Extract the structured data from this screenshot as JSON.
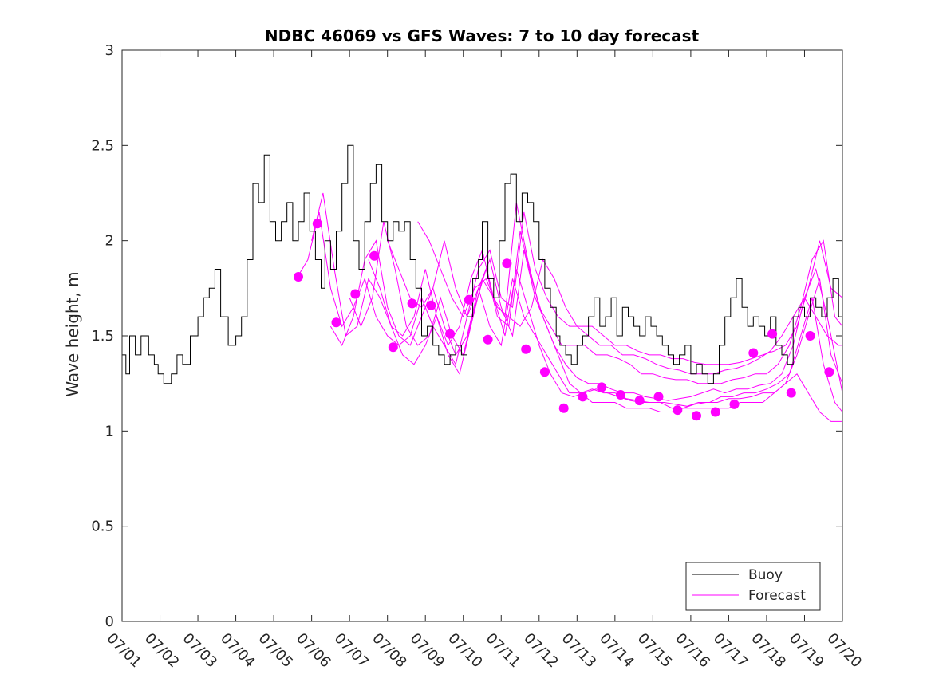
{
  "chart_data": {
    "type": "line",
    "title": "NDBC 46069 vs GFS Waves: 7 to 10 day forecast",
    "xlabel": "",
    "ylabel": "Wave height, m",
    "xlim": [
      0,
      19
    ],
    "ylim": [
      0,
      3
    ],
    "yticks": [
      0,
      0.5,
      1,
      1.5,
      2,
      2.5,
      3
    ],
    "xtick_labels": [
      "07/01",
      "07/02",
      "07/03",
      "07/04",
      "07/05",
      "07/06",
      "07/07",
      "07/08",
      "07/09",
      "07/10",
      "07/11",
      "07/12",
      "07/13",
      "07/14",
      "07/15",
      "07/16",
      "07/17",
      "07/18",
      "07/19",
      "07/20"
    ],
    "grid": false,
    "legend": {
      "position": "bottom-right",
      "entries": [
        "Buoy",
        "Forecast"
      ]
    },
    "colors": {
      "buoy": "#000000",
      "forecast": "#ff00ff"
    },
    "buoy": {
      "name": "Buoy",
      "x": [
        0.0,
        0.1,
        0.2,
        0.35,
        0.5,
        0.7,
        0.85,
        0.95,
        1.1,
        1.3,
        1.45,
        1.6,
        1.8,
        2.0,
        2.15,
        2.3,
        2.45,
        2.6,
        2.8,
        3.0,
        3.15,
        3.3,
        3.45,
        3.6,
        3.75,
        3.9,
        4.05,
        4.2,
        4.35,
        4.5,
        4.65,
        4.8,
        4.95,
        5.1,
        5.25,
        5.35,
        5.5,
        5.65,
        5.8,
        5.95,
        6.1,
        6.25,
        6.4,
        6.55,
        6.7,
        6.85,
        7.0,
        7.15,
        7.3,
        7.45,
        7.6,
        7.75,
        7.9,
        8.05,
        8.2,
        8.35,
        8.5,
        8.65,
        8.8,
        8.95,
        9.1,
        9.25,
        9.4,
        9.5,
        9.65,
        9.8,
        9.95,
        10.1,
        10.25,
        10.4,
        10.55,
        10.7,
        10.85,
        11.0,
        11.15,
        11.3,
        11.45,
        11.55,
        11.7,
        11.85,
        12.0,
        12.15,
        12.3,
        12.45,
        12.6,
        12.75,
        12.9,
        13.05,
        13.2,
        13.35,
        13.5,
        13.65,
        13.8,
        13.95,
        14.1,
        14.25,
        14.4,
        14.55,
        14.7,
        14.85,
        15.0,
        15.15,
        15.3,
        15.45,
        15.6,
        15.75,
        15.9,
        16.05,
        16.2,
        16.35,
        16.5,
        16.65,
        16.8,
        16.95,
        17.1,
        17.25,
        17.4,
        17.55,
        17.7,
        17.85,
        18.0,
        18.15,
        18.3,
        18.45,
        18.6,
        18.75,
        18.9,
        19.0
      ],
      "values": [
        1.4,
        1.3,
        1.5,
        1.4,
        1.5,
        1.4,
        1.35,
        1.3,
        1.25,
        1.3,
        1.4,
        1.35,
        1.5,
        1.6,
        1.7,
        1.75,
        1.85,
        1.6,
        1.45,
        1.5,
        1.6,
        1.9,
        2.3,
        2.2,
        2.45,
        2.1,
        2.0,
        2.1,
        2.2,
        2.0,
        2.1,
        2.25,
        2.05,
        1.9,
        1.75,
        2.0,
        1.85,
        2.05,
        2.3,
        2.5,
        2.0,
        1.85,
        2.1,
        2.3,
        2.4,
        2.1,
        2.0,
        2.1,
        2.05,
        2.1,
        1.9,
        1.75,
        1.5,
        1.55,
        1.45,
        1.4,
        1.35,
        1.4,
        1.45,
        1.4,
        1.6,
        1.8,
        1.9,
        2.1,
        1.8,
        1.7,
        2.0,
        2.3,
        2.35,
        2.1,
        2.25,
        2.2,
        2.1,
        1.9,
        1.75,
        1.65,
        1.5,
        1.45,
        1.4,
        1.35,
        1.45,
        1.5,
        1.6,
        1.7,
        1.55,
        1.6,
        1.7,
        1.5,
        1.65,
        1.6,
        1.55,
        1.5,
        1.6,
        1.55,
        1.5,
        1.45,
        1.4,
        1.35,
        1.4,
        1.45,
        1.3,
        1.35,
        1.3,
        1.25,
        1.3,
        1.45,
        1.6,
        1.7,
        1.8,
        1.65,
        1.55,
        1.6,
        1.55,
        1.5,
        1.6,
        1.45,
        1.4,
        1.35,
        1.6,
        1.65,
        1.6,
        1.7,
        1.65,
        1.6,
        1.7,
        1.8,
        1.6,
        1.55
      ]
    },
    "forecast_dots": {
      "name": "Forecast",
      "x": [
        4.65,
        5.15,
        5.65,
        6.15,
        6.65,
        7.15,
        7.65,
        8.15,
        8.65,
        9.15,
        9.65,
        10.15,
        10.65,
        11.15,
        11.65,
        12.15,
        12.65,
        13.15,
        13.65,
        14.15,
        14.65,
        15.15,
        15.65,
        16.15,
        16.65,
        17.15,
        17.65,
        18.15,
        18.65
      ],
      "values": [
        1.81,
        2.09,
        1.57,
        1.72,
        1.92,
        1.44,
        1.67,
        1.66,
        1.51,
        1.69,
        1.48,
        1.88,
        1.43,
        1.31,
        1.12,
        1.18,
        1.23,
        1.19,
        1.16,
        1.18,
        1.11,
        1.08,
        1.1,
        1.14,
        1.41,
        1.51,
        1.2,
        1.5,
        1.31
      ]
    },
    "forecast_lines": [
      {
        "x": [
          4.6,
          4.9,
          5.2,
          5.5,
          5.8,
          6.1,
          6.4,
          6.7,
          7.0,
          7.3,
          7.6,
          7.9,
          8.2,
          8.5,
          8.8,
          9.1,
          9.4,
          9.7,
          10.0,
          10.3,
          10.6,
          10.9,
          11.2,
          11.5,
          11.8,
          12.1,
          12.4,
          12.7,
          13.0,
          13.3,
          13.6,
          13.9,
          14.2,
          14.5,
          14.8,
          15.1,
          15.4,
          15.7,
          16.0,
          16.3,
          16.6,
          16.9,
          17.2,
          17.5,
          17.8,
          18.1,
          18.4,
          18.7,
          19.0
        ],
        "values": [
          1.8,
          1.9,
          2.15,
          1.75,
          1.55,
          1.65,
          1.8,
          1.6,
          1.5,
          1.45,
          1.5,
          1.7,
          1.55,
          1.45,
          1.35,
          1.6,
          1.75,
          1.55,
          1.45,
          1.8,
          1.6,
          1.5,
          1.4,
          1.3,
          1.2,
          1.2,
          1.15,
          1.15,
          1.15,
          1.12,
          1.12,
          1.12,
          1.1,
          1.1,
          1.12,
          1.12,
          1.12,
          1.12,
          1.12,
          1.15,
          1.15,
          1.15,
          1.2,
          1.25,
          1.3,
          1.2,
          1.1,
          1.05,
          1.05
        ]
      },
      {
        "x": [
          5.0,
          5.3,
          5.6,
          5.9,
          6.2,
          6.5,
          6.8,
          7.1,
          7.4,
          7.7,
          8.0,
          8.3,
          8.6,
          8.9,
          9.2,
          9.5,
          9.8,
          10.1,
          10.4,
          10.7,
          11.0,
          11.3,
          11.6,
          11.9,
          12.2,
          12.5,
          12.8,
          13.1,
          13.4,
          13.7,
          14.0,
          14.3,
          14.6,
          14.9,
          15.2,
          15.5,
          15.8,
          16.1,
          16.4,
          16.7,
          17.0,
          17.3,
          17.6,
          17.9,
          18.2,
          18.5,
          18.8,
          19.0
        ],
        "values": [
          2.0,
          2.25,
          1.85,
          1.5,
          1.55,
          1.8,
          1.7,
          1.55,
          1.4,
          1.35,
          1.45,
          1.6,
          1.4,
          1.3,
          1.55,
          1.8,
          1.7,
          1.5,
          1.85,
          1.65,
          1.45,
          1.3,
          1.2,
          1.18,
          1.2,
          1.22,
          1.2,
          1.18,
          1.16,
          1.15,
          1.15,
          1.15,
          1.14,
          1.13,
          1.15,
          1.15,
          1.18,
          1.18,
          1.2,
          1.2,
          1.22,
          1.25,
          1.3,
          1.5,
          1.7,
          1.35,
          1.15,
          1.1
        ]
      },
      {
        "x": [
          5.5,
          5.8,
          6.1,
          6.4,
          6.7,
          7.0,
          7.3,
          7.6,
          7.9,
          8.2,
          8.5,
          8.8,
          9.1,
          9.4,
          9.7,
          10.0,
          10.3,
          10.6,
          10.9,
          11.2,
          11.5,
          11.8,
          12.1,
          12.4,
          12.7,
          13.0,
          13.3,
          13.6,
          13.9,
          14.2,
          14.5,
          14.8,
          15.1,
          15.4,
          15.7,
          16.0,
          16.3,
          16.6,
          16.9,
          17.2,
          17.5,
          17.8,
          18.1,
          18.4,
          18.7,
          19.0
        ],
        "values": [
          1.55,
          1.45,
          1.6,
          1.9,
          2.0,
          1.65,
          1.5,
          1.45,
          1.6,
          1.75,
          1.55,
          1.4,
          1.5,
          1.75,
          1.9,
          1.65,
          1.5,
          1.95,
          1.7,
          1.55,
          1.4,
          1.25,
          1.2,
          1.22,
          1.2,
          1.2,
          1.17,
          1.16,
          1.15,
          1.15,
          1.12,
          1.12,
          1.14,
          1.15,
          1.15,
          1.17,
          1.17,
          1.18,
          1.2,
          1.2,
          1.25,
          1.4,
          1.6,
          1.8,
          1.4,
          1.25
        ]
      },
      {
        "x": [
          6.0,
          6.3,
          6.6,
          6.9,
          7.2,
          7.5,
          7.8,
          8.1,
          8.4,
          8.7,
          9.0,
          9.3,
          9.6,
          9.9,
          10.2,
          10.5,
          10.8,
          11.1,
          11.4,
          11.7,
          12.0,
          12.3,
          12.6,
          12.9,
          13.2,
          13.5,
          13.8,
          14.1,
          14.4,
          14.7,
          15.0,
          15.3,
          15.6,
          15.9,
          16.2,
          16.5,
          16.8,
          17.1,
          17.4,
          17.7,
          18.0,
          18.3,
          18.6,
          18.9,
          19.0
        ],
        "values": [
          1.7,
          1.55,
          1.7,
          2.1,
          1.85,
          1.55,
          1.45,
          1.5,
          1.7,
          1.5,
          1.4,
          1.65,
          1.85,
          1.6,
          1.55,
          2.05,
          1.8,
          1.6,
          1.45,
          1.35,
          1.28,
          1.25,
          1.25,
          1.22,
          1.2,
          1.2,
          1.18,
          1.17,
          1.16,
          1.17,
          1.18,
          1.2,
          1.22,
          1.2,
          1.22,
          1.22,
          1.24,
          1.25,
          1.3,
          1.45,
          1.7,
          1.85,
          1.6,
          1.3,
          1.2
        ]
      },
      {
        "x": [
          6.5,
          6.8,
          7.1,
          7.4,
          7.7,
          8.0,
          8.3,
          8.6,
          8.9,
          9.2,
          9.5,
          9.8,
          10.1,
          10.4,
          10.7,
          11.0,
          11.3,
          11.6,
          11.9,
          12.2,
          12.5,
          12.8,
          13.1,
          13.4,
          13.7,
          14.0,
          14.3,
          14.6,
          14.9,
          15.2,
          15.5,
          15.8,
          16.1,
          16.4,
          16.7,
          17.0,
          17.3,
          17.6,
          17.9,
          18.2,
          18.5,
          18.8,
          19.0
        ],
        "values": [
          1.9,
          1.75,
          1.55,
          1.5,
          1.6,
          1.85,
          1.6,
          1.45,
          1.55,
          1.8,
          1.95,
          1.7,
          1.6,
          2.2,
          1.9,
          1.65,
          1.55,
          1.45,
          1.45,
          1.45,
          1.4,
          1.4,
          1.38,
          1.35,
          1.3,
          1.3,
          1.28,
          1.27,
          1.27,
          1.25,
          1.25,
          1.25,
          1.27,
          1.28,
          1.3,
          1.3,
          1.35,
          1.45,
          1.65,
          1.9,
          2.0,
          1.6,
          1.55
        ]
      },
      {
        "x": [
          7.0,
          7.3,
          7.6,
          7.9,
          8.2,
          8.5,
          8.8,
          9.1,
          9.4,
          9.7,
          10.0,
          10.3,
          10.6,
          10.9,
          11.2,
          11.5,
          11.8,
          12.1,
          12.4,
          12.7,
          13.0,
          13.3,
          13.6,
          13.9,
          14.2,
          14.5,
          14.8,
          15.1,
          15.4,
          15.7,
          16.0,
          16.3,
          16.6,
          16.9,
          17.2,
          17.5,
          17.8,
          18.1,
          18.4,
          18.7,
          19.0
        ],
        "values": [
          2.0,
          1.85,
          1.7,
          1.65,
          1.75,
          2.0,
          1.75,
          1.6,
          1.85,
          1.95,
          1.7,
          1.65,
          2.15,
          1.85,
          1.7,
          1.6,
          1.55,
          1.55,
          1.55,
          1.5,
          1.45,
          1.45,
          1.42,
          1.4,
          1.4,
          1.38,
          1.38,
          1.36,
          1.35,
          1.35,
          1.35,
          1.36,
          1.38,
          1.4,
          1.42,
          1.45,
          1.55,
          1.75,
          2.0,
          1.75,
          1.7
        ]
      },
      {
        "x": [
          7.8,
          8.1,
          8.4,
          8.7,
          9.0,
          9.3,
          9.6,
          9.9,
          10.2,
          10.5,
          10.8,
          11.1,
          11.4,
          11.7,
          12.0,
          12.3,
          12.6,
          12.9,
          13.2,
          13.5,
          13.8,
          14.1,
          14.4,
          14.7,
          15.0,
          15.3,
          15.6,
          15.9,
          16.2,
          16.5,
          16.8,
          17.1,
          17.4,
          17.7,
          18.0,
          18.3,
          18.6,
          18.9,
          19.0
        ],
        "values": [
          2.1,
          2.0,
          1.85,
          1.7,
          1.6,
          1.75,
          1.8,
          1.65,
          1.6,
          1.55,
          1.65,
          1.9,
          1.8,
          1.65,
          1.55,
          1.5,
          1.45,
          1.45,
          1.4,
          1.4,
          1.38,
          1.35,
          1.33,
          1.32,
          1.3,
          1.3,
          1.3,
          1.32,
          1.33,
          1.35,
          1.38,
          1.42,
          1.5,
          1.6,
          1.7,
          1.6,
          1.5,
          1.45,
          1.45
        ]
      }
    ]
  }
}
